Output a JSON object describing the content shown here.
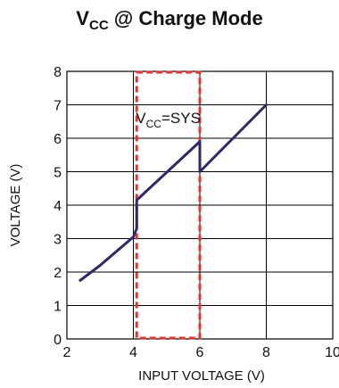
{
  "chart_data": {
    "type": "line",
    "title_main": "V",
    "title_sub": "CC",
    "title_rest": " @ Charge Mode",
    "xlabel": "INPUT VOLTAGE (V)",
    "ylabel": "VOLTAGE (V)",
    "xlim": [
      2,
      10
    ],
    "ylim": [
      0,
      8
    ],
    "xticks": [
      "2",
      "4",
      "6",
      "8",
      "10"
    ],
    "yticks": [
      "0",
      "1",
      "2",
      "3",
      "4",
      "5",
      "6",
      "7",
      "8"
    ],
    "grid": true,
    "series": [
      {
        "color": "#2b2a6b",
        "x": [
          2.4,
          3.0,
          4.0,
          4.1,
          4.1,
          6.0,
          6.0,
          7.0,
          7.5,
          8.0
        ],
        "y": [
          1.75,
          2.2,
          3.05,
          3.3,
          4.15,
          5.9,
          5.0,
          6.0,
          6.5,
          7.0
        ]
      }
    ],
    "highlight_region": {
      "x": [
        4.1,
        6.0
      ],
      "y": [
        0,
        8
      ],
      "color": "#e8322f",
      "label_main": "V",
      "label_sub": "CC",
      "label_rest": "=SYS"
    }
  }
}
